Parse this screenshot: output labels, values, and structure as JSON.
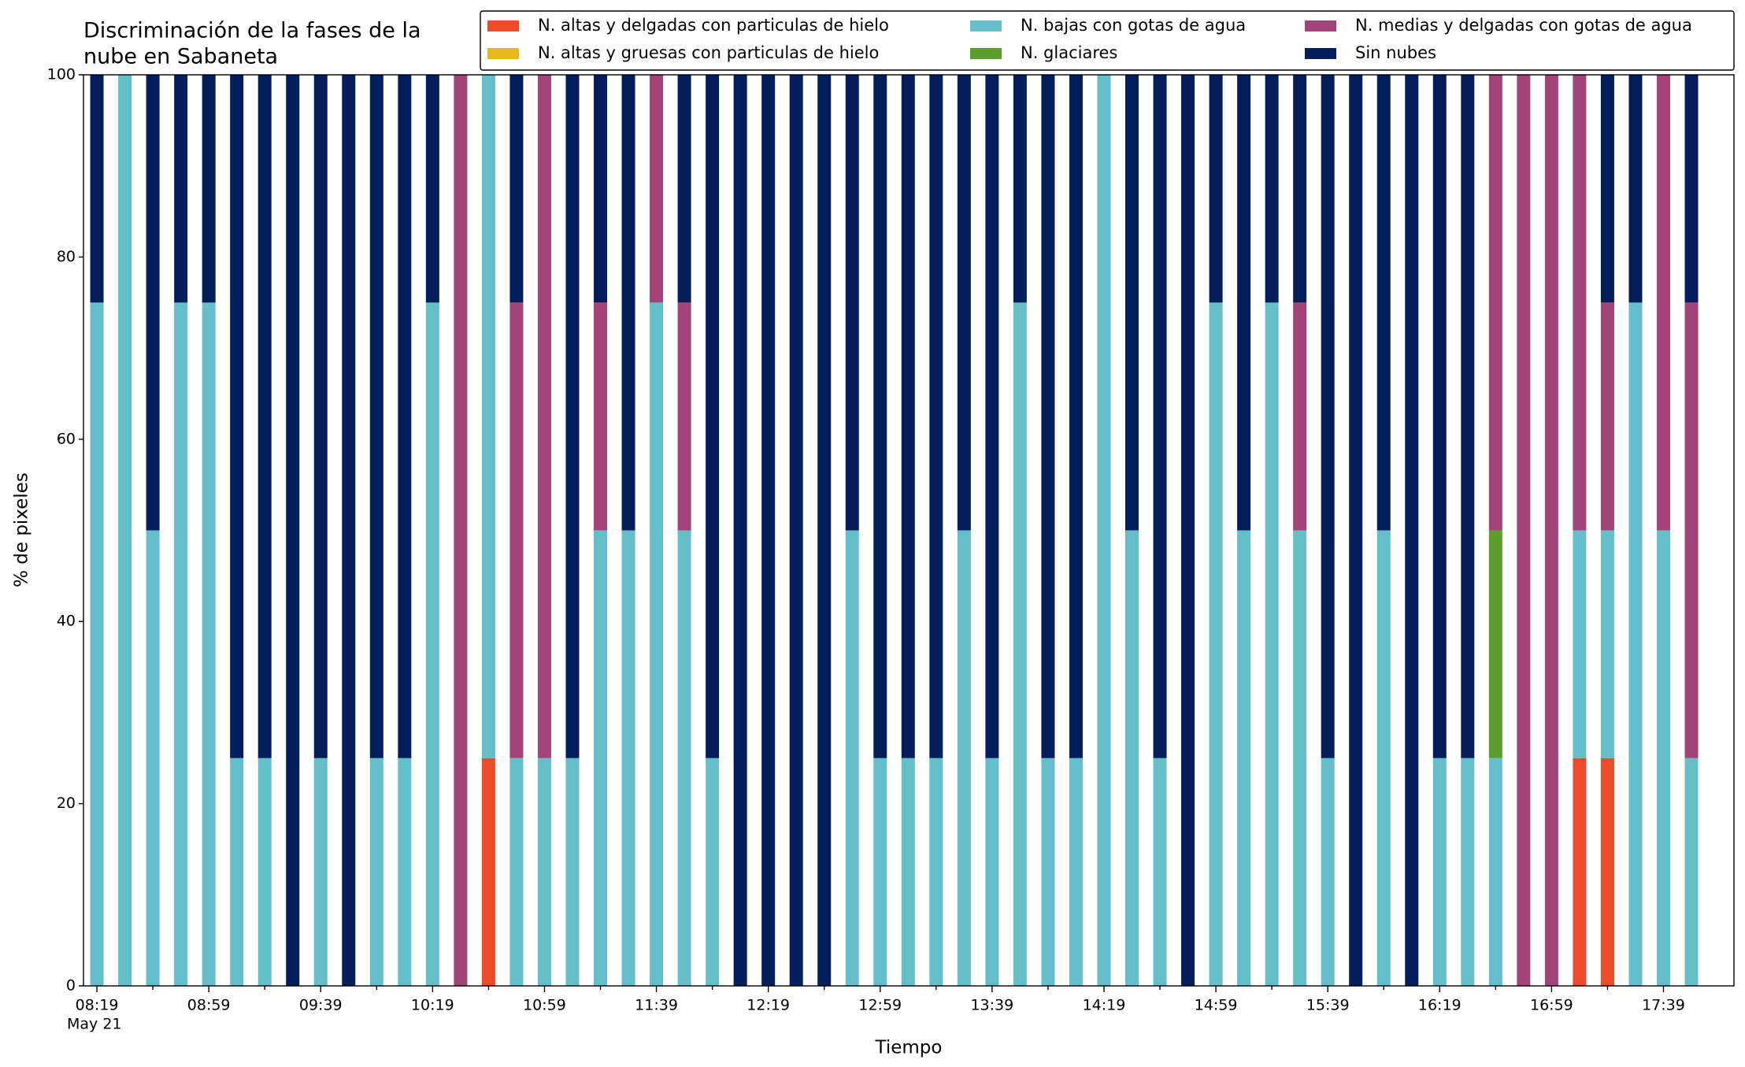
{
  "chart_data": {
    "type": "stacked_bar",
    "title_lines": [
      "Discriminación de la fases de la",
      "nube en Sabaneta"
    ],
    "xlabel": "Tiempo",
    "ylabel": "% de pixeles",
    "date_label": "May 21",
    "categories": [
      "08:19",
      null,
      null,
      null,
      "08:59",
      null,
      null,
      null,
      "09:39",
      null,
      null,
      null,
      "10:19",
      null,
      null,
      null,
      "10:59",
      null,
      null,
      null,
      "11:39",
      null,
      null,
      null,
      "12:19",
      null,
      null,
      null,
      "12:59",
      null,
      null,
      null,
      "13:39",
      null,
      null,
      null,
      "14:19",
      null,
      null,
      null,
      "14:59",
      null,
      null,
      null,
      "15:39",
      null,
      null,
      null,
      "16:19",
      null,
      null,
      null,
      "16:59",
      null,
      null,
      null,
      "17:39",
      null
    ],
    "ylim": [
      0,
      100
    ],
    "yticks": [
      0,
      20,
      40,
      60,
      80,
      100
    ],
    "series": [
      {
        "name": "N. altas y delgadas con particulas de hielo",
        "color": "#ee4b2b",
        "values": [
          0,
          0,
          0,
          0,
          0,
          0,
          0,
          0,
          0,
          0,
          0,
          0,
          0,
          0,
          25,
          0,
          0,
          0,
          0,
          0,
          0,
          0,
          0,
          0,
          0,
          0,
          0,
          0,
          0,
          0,
          0,
          0,
          0,
          0,
          0,
          0,
          0,
          0,
          0,
          0,
          0,
          0,
          0,
          0,
          0,
          0,
          0,
          0,
          0,
          0,
          0,
          0,
          0,
          25,
          25,
          0,
          0,
          0
        ]
      },
      {
        "name": "N. altas y gruesas con particulas de hielo",
        "color": "#e6b81e",
        "values": [
          0,
          0,
          0,
          0,
          0,
          0,
          0,
          0,
          0,
          0,
          0,
          0,
          0,
          0,
          0,
          0,
          0,
          0,
          0,
          0,
          0,
          0,
          0,
          0,
          0,
          0,
          0,
          0,
          0,
          0,
          0,
          0,
          0,
          0,
          0,
          0,
          0,
          0,
          0,
          0,
          0,
          0,
          0,
          0,
          0,
          0,
          0,
          0,
          0,
          0,
          0,
          0,
          0,
          0,
          0,
          0,
          0,
          0
        ]
      },
      {
        "name": "N. bajas con gotas de agua",
        "color": "#65bfca",
        "values": [
          75,
          100,
          50,
          75,
          75,
          25,
          25,
          0,
          25,
          0,
          25,
          25,
          75,
          0,
          75,
          25,
          25,
          25,
          50,
          50,
          75,
          50,
          25,
          0,
          0,
          0,
          0,
          50,
          25,
          25,
          25,
          50,
          25,
          75,
          25,
          25,
          100,
          50,
          25,
          0,
          75,
          50,
          75,
          50,
          25,
          0,
          50,
          0,
          25,
          25,
          25,
          0,
          0,
          25,
          25,
          75,
          50,
          25
        ]
      },
      {
        "name": "N. glaciares",
        "color": "#5c9e2c",
        "values": [
          0,
          0,
          0,
          0,
          0,
          0,
          0,
          0,
          0,
          0,
          0,
          0,
          0,
          0,
          0,
          0,
          0,
          0,
          0,
          0,
          0,
          0,
          0,
          0,
          0,
          0,
          0,
          0,
          0,
          0,
          0,
          0,
          0,
          0,
          0,
          0,
          0,
          0,
          0,
          0,
          0,
          0,
          0,
          0,
          0,
          0,
          0,
          0,
          0,
          0,
          25,
          0,
          0,
          0,
          0,
          0,
          0,
          0
        ]
      },
      {
        "name": "N. medias y delgadas con gotas de agua",
        "color": "#a24478",
        "values": [
          0,
          0,
          0,
          0,
          0,
          0,
          0,
          0,
          0,
          0,
          0,
          0,
          0,
          100,
          0,
          50,
          75,
          0,
          25,
          0,
          25,
          25,
          0,
          0,
          0,
          0,
          0,
          0,
          0,
          0,
          0,
          0,
          0,
          0,
          0,
          0,
          0,
          0,
          0,
          0,
          0,
          0,
          0,
          25,
          0,
          0,
          0,
          0,
          0,
          0,
          50,
          100,
          100,
          50,
          25,
          0,
          50,
          50
        ]
      },
      {
        "name": "Sin nubes",
        "color": "#041e5c",
        "values": [
          25,
          0,
          50,
          25,
          25,
          75,
          75,
          100,
          75,
          100,
          75,
          75,
          25,
          0,
          0,
          25,
          0,
          75,
          25,
          50,
          0,
          25,
          75,
          100,
          100,
          100,
          100,
          50,
          75,
          75,
          75,
          50,
          75,
          25,
          75,
          75,
          0,
          50,
          75,
          100,
          25,
          50,
          25,
          25,
          75,
          100,
          50,
          100,
          75,
          75,
          0,
          0,
          0,
          0,
          25,
          25,
          0,
          25
        ]
      }
    ]
  }
}
